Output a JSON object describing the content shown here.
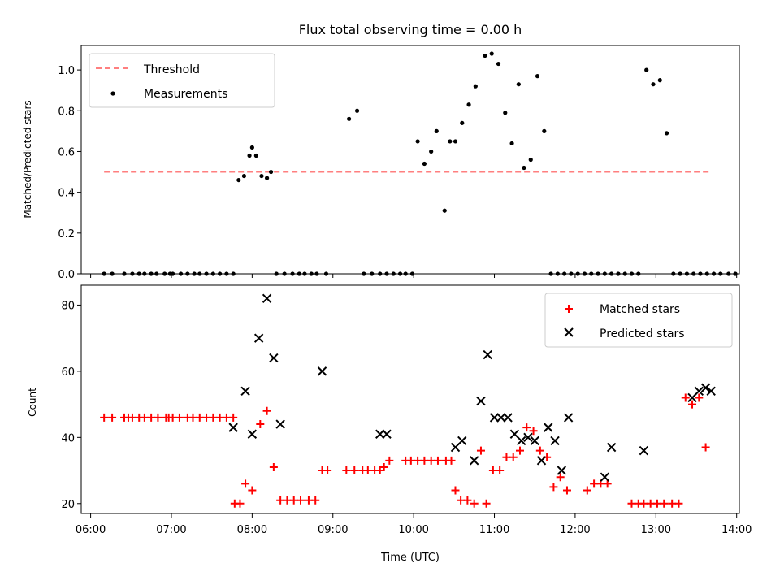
{
  "colors": {
    "threshold": "#ff7f7f",
    "measurement": "#000000",
    "matched": "#ff0000",
    "predicted": "#000000",
    "axes": "#000000",
    "background": "#ffffff"
  },
  "chart_data": [
    {
      "type": "scatter",
      "title": "Flux total observing time = 0.00 h",
      "xlabel": "",
      "ylabel": "Matched/Predicted stars",
      "xlim": [
        "05:53",
        "14:02"
      ],
      "ylim": [
        0,
        1.12
      ],
      "yticks": [
        "0.0",
        "0.2",
        "0.4",
        "0.6",
        "0.8",
        "1.0"
      ],
      "ytick_values": [
        0,
        0.2,
        0.4,
        0.6,
        0.8,
        1.0
      ],
      "xtick_values": [
        "06:00",
        "07:00",
        "08:00",
        "09:00",
        "10:00",
        "11:00",
        "12:00",
        "13:00",
        "14:00"
      ],
      "grid": false,
      "legend": {
        "placement": "top-left",
        "entries": [
          "Threshold",
          "Measurements"
        ]
      },
      "series": [
        {
          "name": "Threshold",
          "style": "dashed-line",
          "x": [
            "06:10",
            "13:40"
          ],
          "y": [
            0.5,
            0.5
          ]
        },
        {
          "name": "Measurements",
          "style": "dot",
          "x": [
            "06:10",
            "06:16",
            "06:25",
            "06:31",
            "06:36",
            "06:40",
            "06:45",
            "06:49",
            "06:55",
            "06:59",
            "07:01",
            "07:07",
            "07:12",
            "07:17",
            "07:21",
            "07:26",
            "07:31",
            "07:36",
            "07:41",
            "07:46",
            "07:50",
            "07:54",
            "07:58",
            "08:00",
            "08:03",
            "08:07",
            "08:11",
            "08:14",
            "08:18",
            "08:24",
            "08:30",
            "08:35",
            "08:39",
            "08:44",
            "08:48",
            "08:55",
            "09:12",
            "09:18",
            "09:23",
            "09:29",
            "09:35",
            "09:40",
            "09:45",
            "09:50",
            "09:54",
            "09:59",
            "10:03",
            "10:08",
            "10:13",
            "10:17",
            "10:23",
            "10:27",
            "10:31",
            "10:36",
            "10:41",
            "10:46",
            "10:53",
            "10:58",
            "11:03",
            "11:08",
            "11:13",
            "11:18",
            "11:22",
            "11:27",
            "11:32",
            "11:37",
            "11:42",
            "11:47",
            "11:52",
            "11:57",
            "12:02",
            "12:07",
            "12:12",
            "12:17",
            "12:22",
            "12:27",
            "12:32",
            "12:37",
            "12:42",
            "12:47",
            "12:53",
            "12:58",
            "13:03",
            "13:08",
            "13:13",
            "13:18",
            "13:23",
            "13:28",
            "13:33",
            "13:38",
            "13:43",
            "13:48",
            "13:54",
            "13:59"
          ],
          "y": [
            0,
            0,
            0,
            0,
            0,
            0,
            0,
            0,
            0,
            0,
            0,
            0,
            0,
            0,
            0,
            0,
            0,
            0,
            0,
            0,
            0.46,
            0.48,
            0.58,
            0.62,
            0.58,
            0.48,
            0.47,
            0.5,
            0,
            0,
            0,
            0,
            0,
            0,
            0,
            0,
            0.76,
            0.8,
            0,
            0,
            0,
            0,
            0,
            0,
            0,
            0,
            0.65,
            0.54,
            0.6,
            0.7,
            0.31,
            0.65,
            0.65,
            0.74,
            0.83,
            0.92,
            1.07,
            1.08,
            1.03,
            0.79,
            0.64,
            0.93,
            0.52,
            0.56,
            0.97,
            0.7,
            0,
            0,
            0,
            0,
            0,
            0,
            0,
            0,
            0,
            0,
            0,
            0,
            0,
            0,
            1.0,
            0.93,
            0.95,
            0.69,
            0,
            0,
            0,
            0,
            0,
            0,
            0,
            0,
            0,
            0
          ]
        }
      ]
    },
    {
      "type": "scatter",
      "title": "",
      "xlabel": "Time (UTC)",
      "ylabel": "Count",
      "xlim": [
        "05:53",
        "14:02"
      ],
      "ylim": [
        17,
        86
      ],
      "xticks": [
        "06:00",
        "07:00",
        "08:00",
        "09:00",
        "10:00",
        "11:00",
        "12:00",
        "13:00",
        "14:00"
      ],
      "yticks": [
        "20",
        "40",
        "60",
        "80"
      ],
      "ytick_values": [
        20,
        40,
        60,
        80
      ],
      "grid": false,
      "legend": {
        "placement": "top-right",
        "entries": [
          "Matched stars",
          "Predicted stars"
        ]
      },
      "series": [
        {
          "name": "Matched stars",
          "marker": "+",
          "points": [
            [
              "06:10",
              46
            ],
            [
              "06:16",
              46
            ],
            [
              "06:25",
              46
            ],
            [
              "06:28",
              46
            ],
            [
              "06:31",
              46
            ],
            [
              "06:36",
              46
            ],
            [
              "06:40",
              46
            ],
            [
              "06:45",
              46
            ],
            [
              "06:50",
              46
            ],
            [
              "06:56",
              46
            ],
            [
              "06:58",
              46
            ],
            [
              "07:01",
              46
            ],
            [
              "07:06",
              46
            ],
            [
              "07:12",
              46
            ],
            [
              "07:16",
              46
            ],
            [
              "07:21",
              46
            ],
            [
              "07:26",
              46
            ],
            [
              "07:31",
              46
            ],
            [
              "07:36",
              46
            ],
            [
              "07:41",
              46
            ],
            [
              "07:46",
              46
            ],
            [
              "07:47",
              20
            ],
            [
              "07:51",
              20
            ],
            [
              "07:55",
              26
            ],
            [
              "08:00",
              24
            ],
            [
              "08:06",
              44
            ],
            [
              "08:11",
              48
            ],
            [
              "08:16",
              31
            ],
            [
              "08:21",
              21
            ],
            [
              "08:26",
              21
            ],
            [
              "08:31",
              21
            ],
            [
              "08:36",
              21
            ],
            [
              "08:42",
              21
            ],
            [
              "08:47",
              21
            ],
            [
              "08:52",
              30
            ],
            [
              "08:56",
              30
            ],
            [
              "09:10",
              30
            ],
            [
              "09:16",
              30
            ],
            [
              "09:22",
              30
            ],
            [
              "09:26",
              30
            ],
            [
              "09:31",
              30
            ],
            [
              "09:35",
              30
            ],
            [
              "09:38",
              31
            ],
            [
              "09:42",
              33
            ],
            [
              "09:54",
              33
            ],
            [
              "09:58",
              33
            ],
            [
              "10:03",
              33
            ],
            [
              "10:08",
              33
            ],
            [
              "10:13",
              33
            ],
            [
              "10:18",
              33
            ],
            [
              "10:24",
              33
            ],
            [
              "10:28",
              33
            ],
            [
              "10:31",
              24
            ],
            [
              "10:35",
              21
            ],
            [
              "10:40",
              21
            ],
            [
              "10:45",
              20
            ],
            [
              "10:50",
              36
            ],
            [
              "10:54",
              20
            ],
            [
              "10:59",
              30
            ],
            [
              "11:04",
              30
            ],
            [
              "11:09",
              34
            ],
            [
              "11:14",
              34
            ],
            [
              "11:19",
              36
            ],
            [
              "11:24",
              43
            ],
            [
              "11:29",
              42
            ],
            [
              "11:34",
              36
            ],
            [
              "11:39",
              34
            ],
            [
              "11:44",
              25
            ],
            [
              "11:49",
              28
            ],
            [
              "11:54",
              24
            ],
            [
              "12:09",
              24
            ],
            [
              "12:14",
              26
            ],
            [
              "12:19",
              26
            ],
            [
              "12:24",
              26
            ],
            [
              "12:42",
              20
            ],
            [
              "12:47",
              20
            ],
            [
              "12:51",
              20
            ],
            [
              "12:56",
              20
            ],
            [
              "13:01",
              20
            ],
            [
              "13:06",
              20
            ],
            [
              "13:12",
              20
            ],
            [
              "13:17",
              20
            ],
            [
              "13:22",
              52
            ],
            [
              "13:27",
              50
            ],
            [
              "13:32",
              52
            ],
            [
              "13:37",
              37
            ]
          ]
        },
        {
          "name": "Predicted stars",
          "marker": "x",
          "points": [
            [
              "07:46",
              43
            ],
            [
              "07:55",
              54
            ],
            [
              "08:00",
              41
            ],
            [
              "08:05",
              70
            ],
            [
              "08:11",
              82
            ],
            [
              "08:16",
              64
            ],
            [
              "08:21",
              44
            ],
            [
              "08:52",
              60
            ],
            [
              "09:35",
              41
            ],
            [
              "09:40",
              41
            ],
            [
              "10:31",
              37
            ],
            [
              "10:36",
              39
            ],
            [
              "10:45",
              33
            ],
            [
              "10:50",
              51
            ],
            [
              "10:55",
              65
            ],
            [
              "11:00",
              46
            ],
            [
              "11:05",
              46
            ],
            [
              "11:10",
              46
            ],
            [
              "11:15",
              41
            ],
            [
              "11:20",
              39
            ],
            [
              "11:25",
              40
            ],
            [
              "11:30",
              39
            ],
            [
              "11:35",
              33
            ],
            [
              "11:40",
              43
            ],
            [
              "11:45",
              39
            ],
            [
              "11:50",
              30
            ],
            [
              "11:55",
              46
            ],
            [
              "12:22",
              28
            ],
            [
              "12:27",
              37
            ],
            [
              "12:51",
              36
            ],
            [
              "13:27",
              52
            ],
            [
              "13:32",
              54
            ],
            [
              "13:37",
              55
            ],
            [
              "13:41",
              54
            ]
          ]
        }
      ]
    }
  ]
}
